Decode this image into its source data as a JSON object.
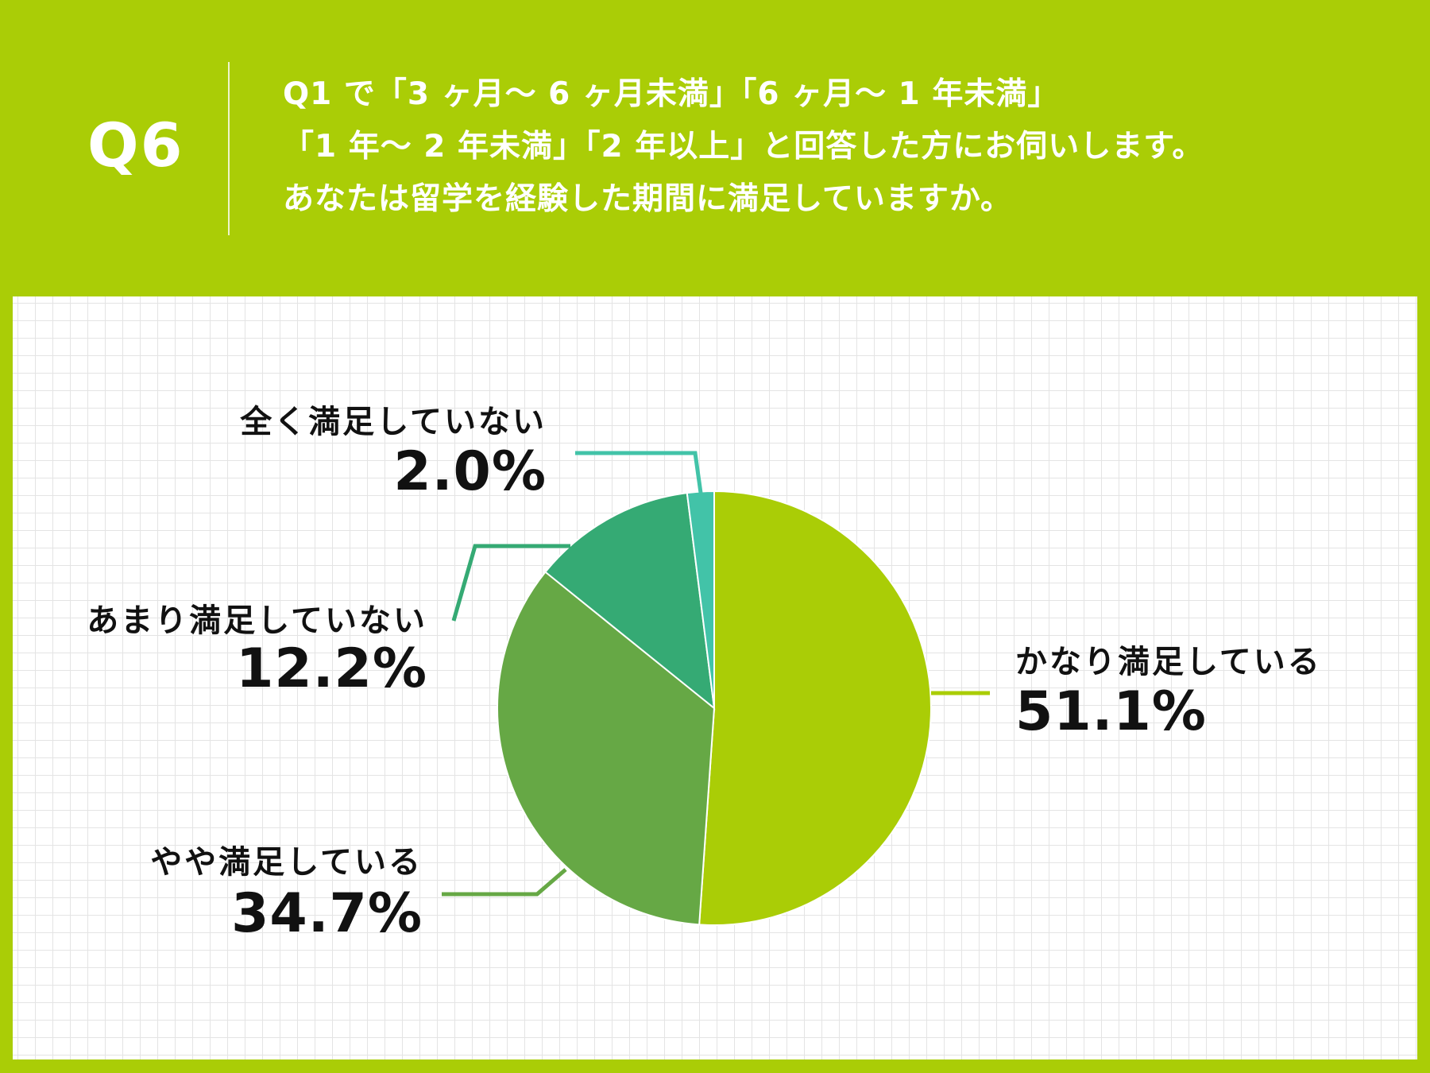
{
  "header": {
    "q_number": "Q6",
    "question_lines": [
      "Q1 で「3 ヶ月〜 6 ヶ月未満」「6 ヶ月〜 1 年未満」",
      "「1 年〜 2 年未満」「2 年以上」と回答した方にお伺いします。",
      "あなたは留学を経験した期間に満足していますか。"
    ]
  },
  "chart_data": {
    "type": "pie",
    "categories": [
      "かなり満足している",
      "やや満足している",
      "あまり満足していない",
      "全く満足していない"
    ],
    "values": [
      51.1,
      34.7,
      12.2,
      2.0
    ],
    "value_labels": [
      "51.1%",
      "34.7%",
      "12.2%",
      "2.0%"
    ],
    "colors": [
      "#aacd06",
      "#66a845",
      "#35aa74",
      "#42c3a8"
    ],
    "start": "12 o'clock",
    "direction": "clockwise",
    "leader_colors": [
      "#aacd06",
      "#66a845",
      "#35aa74",
      "#42c3a8"
    ]
  }
}
